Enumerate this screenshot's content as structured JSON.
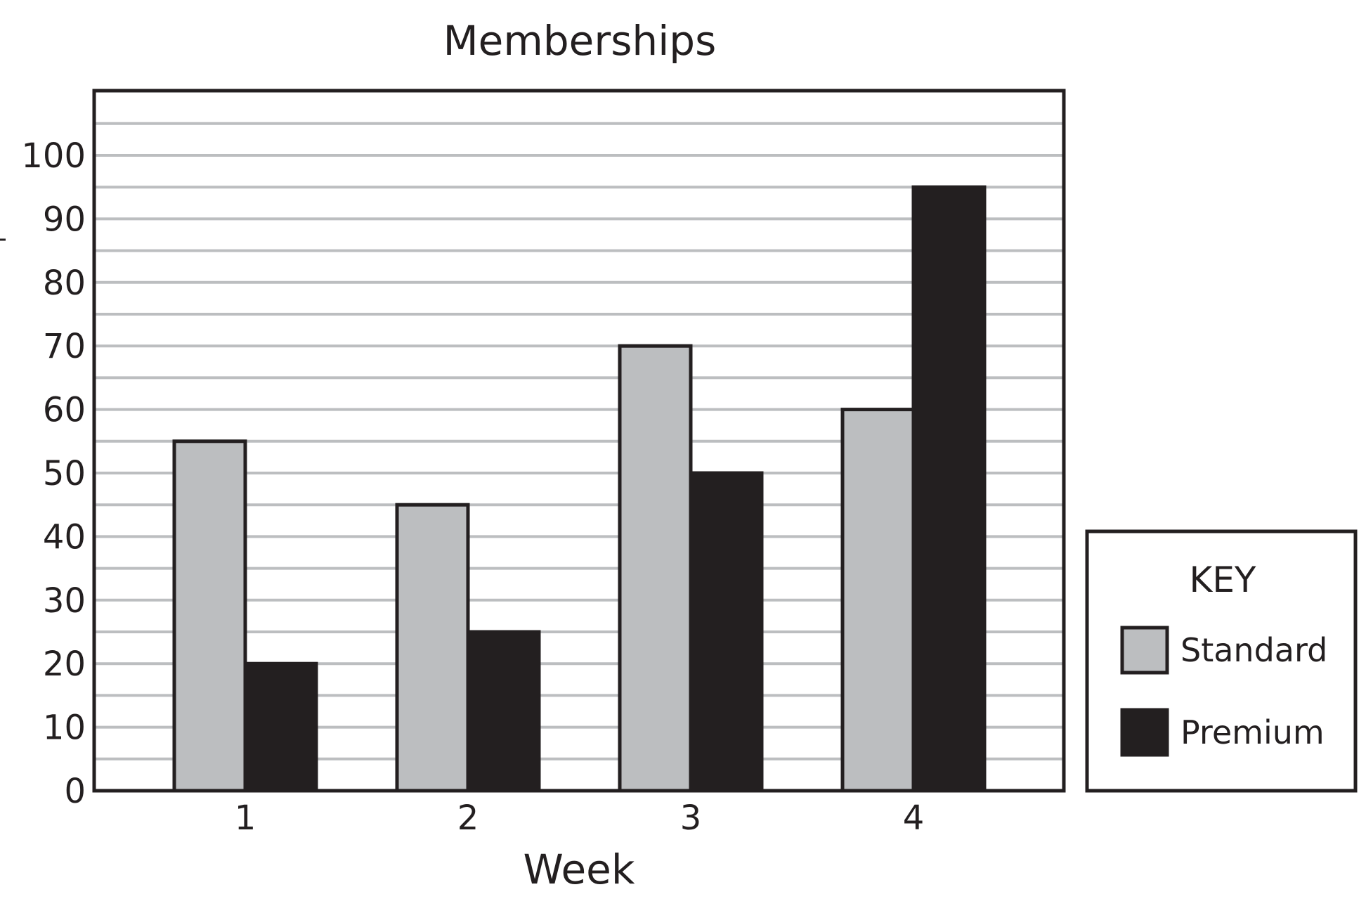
{
  "chart_data": {
    "type": "bar",
    "title": "Memberships",
    "xlabel": "Week",
    "ylabel": "",
    "categories": [
      "1",
      "2",
      "3",
      "4"
    ],
    "series": [
      {
        "name": "Standard",
        "values": [
          55,
          45,
          70,
          60
        ],
        "color": "#bcbec0"
      },
      {
        "name": "Premium",
        "values": [
          20,
          25,
          50,
          95
        ],
        "color": "#231f20"
      }
    ],
    "ylim": [
      0,
      110
    ],
    "yticks": [
      0,
      10,
      20,
      30,
      40,
      50,
      60,
      70,
      80,
      90,
      100
    ],
    "ytick_labels": [
      "0",
      "10",
      "20",
      "30",
      "40",
      "50",
      "60",
      "70",
      "80",
      "90",
      "100"
    ],
    "grid_step": 5,
    "grid": true,
    "legend": {
      "title": "KEY",
      "placement": "right-bottom",
      "entries": [
        "Standard",
        "Premium"
      ]
    },
    "colors": {
      "grid": "#bcbec0",
      "outline": "#231f20"
    }
  }
}
